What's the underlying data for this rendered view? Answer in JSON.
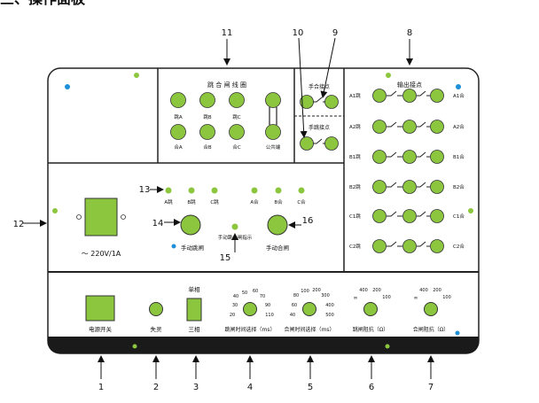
{
  "header": {
    "title": "三、操作面板"
  },
  "callouts": {
    "n1": "1",
    "n2": "2",
    "n3": "3",
    "n4": "4",
    "n5": "5",
    "n6": "6",
    "n7": "7",
    "n8": "8",
    "n9": "9",
    "n10": "10",
    "n11": "11",
    "n12": "12",
    "n13": "13",
    "n14": "14",
    "n15": "15",
    "n16": "16"
  },
  "panel": {
    "trip_close_coil": {
      "title": "跳 合 闸 线 圈",
      "labels": [
        "跳A",
        "跳B",
        "跳C",
        "合A",
        "合B",
        "合C",
        "公共端"
      ]
    },
    "manual_close_point": "手合接点",
    "manual_trip_point": "手跳接点",
    "output_points": {
      "title": "输出接点",
      "left": [
        "A1跳",
        "A2跳",
        "B1跳",
        "B2跳",
        "C1跳",
        "C2跳"
      ],
      "right": [
        "A1合",
        "A2合",
        "B1合",
        "B2合",
        "C1合",
        "C2合"
      ]
    },
    "indicators": [
      "A跳",
      "B跳",
      "C跳",
      "A合",
      "B合",
      "C合"
    ],
    "manual_trip_button": "手动跳闸",
    "manual_close_button": "手动合闸",
    "trip_close_indicator": "手动跳合闸指示",
    "power_rating": "～ 220V/1A",
    "power_switch": "电源开关",
    "loss_of_sync": "失灵",
    "phase_selector": {
      "top": "单相",
      "bottom": "三相"
    },
    "trip_time_select": {
      "label": "跳闸时间选择（ms）",
      "scale": [
        "20",
        "30",
        "40",
        "50",
        "60",
        "70",
        "90",
        "110"
      ]
    },
    "close_time_select": {
      "label": "合闸时间选择（ms）",
      "scale": [
        "40",
        "60",
        "80",
        "100",
        "200",
        "300",
        "400",
        "500"
      ]
    },
    "trip_resistance": {
      "label": "跳闸阻抗（Ω）",
      "scale": [
        "∞",
        "400",
        "200",
        "100"
      ]
    },
    "close_resistance": {
      "label": "合闸阻抗（Ω）",
      "scale": [
        "∞",
        "400",
        "200",
        "100"
      ]
    }
  },
  "colors": {
    "green": "#8cc63f",
    "blue": "#1e8fd8",
    "dark": "#1a1a1a",
    "border": "#222222"
  }
}
